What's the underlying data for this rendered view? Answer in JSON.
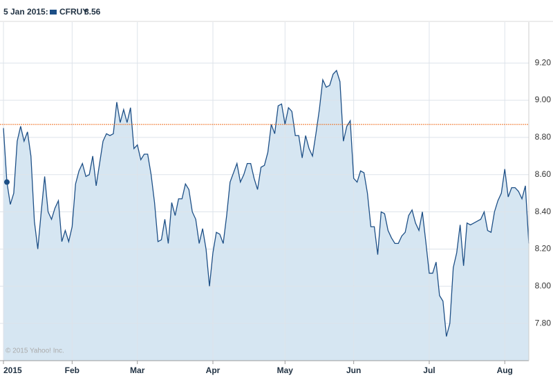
{
  "chart_data": {
    "type": "area",
    "hover_label": "5 Jan 2015:",
    "hover_value": 8.56,
    "watermark": "© 2015 Yahoo! Inc.",
    "reference_line": 8.87,
    "reference_color": "#f07020",
    "grid": true,
    "categories": [
      "2015",
      null,
      null,
      null,
      null,
      null,
      null,
      null,
      null,
      null,
      null,
      null,
      null,
      null,
      null,
      null,
      null,
      null,
      null,
      null,
      "Feb",
      null,
      null,
      null,
      null,
      null,
      null,
      null,
      null,
      null,
      null,
      null,
      null,
      null,
      null,
      null,
      null,
      null,
      null,
      "Mar",
      null,
      null,
      null,
      null,
      null,
      null,
      null,
      null,
      null,
      null,
      null,
      null,
      null,
      null,
      null,
      null,
      null,
      null,
      null,
      null,
      null,
      "Apr",
      null,
      null,
      null,
      null,
      null,
      null,
      null,
      null,
      null,
      null,
      null,
      null,
      null,
      null,
      null,
      null,
      null,
      null,
      null,
      null,
      "May",
      null,
      null,
      null,
      null,
      null,
      null,
      null,
      null,
      null,
      null,
      null,
      null,
      null,
      null,
      null,
      null,
      null,
      null,
      null,
      "Jun",
      null,
      null,
      null,
      null,
      null,
      null,
      null,
      null,
      null,
      null,
      null,
      null,
      null,
      null,
      null,
      null,
      null,
      null,
      null,
      null,
      null,
      "Jul",
      null,
      null,
      null,
      null,
      null,
      null,
      null,
      null,
      null,
      null,
      null,
      null,
      null,
      null,
      null,
      null,
      null,
      null,
      null,
      null,
      null,
      "Aug",
      null,
      null,
      null,
      null,
      null,
      null,
      null
    ],
    "series": [
      {
        "name": "CFRUY",
        "color": "#1d4f86",
        "fill": "#d6e6f2",
        "values": [
          8.85,
          8.56,
          8.44,
          8.5,
          8.78,
          8.86,
          8.78,
          8.83,
          8.7,
          8.35,
          8.2,
          8.4,
          8.59,
          8.4,
          8.36,
          8.42,
          8.46,
          8.24,
          8.3,
          8.24,
          8.32,
          8.55,
          8.62,
          8.66,
          8.59,
          8.6,
          8.7,
          8.54,
          8.66,
          8.78,
          8.82,
          8.81,
          8.82,
          8.99,
          8.88,
          8.95,
          8.88,
          8.96,
          8.74,
          8.76,
          8.68,
          8.71,
          8.71,
          8.6,
          8.45,
          8.24,
          8.25,
          8.36,
          8.23,
          8.45,
          8.38,
          8.47,
          8.47,
          8.55,
          8.52,
          8.4,
          8.36,
          8.23,
          8.31,
          8.2,
          8.0,
          8.18,
          8.29,
          8.28,
          8.23,
          8.38,
          8.56,
          8.61,
          8.66,
          8.56,
          8.6,
          8.66,
          8.66,
          8.58,
          8.52,
          8.64,
          8.65,
          8.72,
          8.87,
          8.82,
          8.97,
          8.98,
          8.87,
          8.96,
          8.94,
          8.81,
          8.81,
          8.69,
          8.81,
          8.74,
          8.7,
          8.82,
          8.95,
          9.11,
          9.07,
          9.08,
          9.14,
          9.16,
          9.1,
          8.78,
          8.86,
          8.89,
          8.58,
          8.56,
          8.62,
          8.61,
          8.5,
          8.32,
          8.32,
          8.17,
          8.4,
          8.39,
          8.3,
          8.26,
          8.23,
          8.23,
          8.27,
          8.29,
          8.38,
          8.41,
          8.34,
          8.3,
          8.4,
          8.24,
          8.07,
          8.07,
          8.13,
          7.95,
          7.92,
          7.73,
          7.8,
          8.1,
          8.18,
          8.33,
          8.11,
          8.34,
          8.33,
          8.34,
          8.35,
          8.36,
          8.4,
          8.3,
          8.29,
          8.4,
          8.46,
          8.5,
          8.63,
          8.48,
          8.53,
          8.53,
          8.51,
          8.47,
          8.54,
          8.23
        ]
      }
    ],
    "ylim": [
      7.6,
      9.42
    ],
    "yticks": [
      {
        "value": 7.8,
        "label": "7.80"
      },
      {
        "value": 8.0,
        "label": "8.00"
      },
      {
        "value": 8.2,
        "label": "8.20"
      },
      {
        "value": 8.4,
        "label": "8.40"
      },
      {
        "value": 8.6,
        "label": "8.60"
      },
      {
        "value": 8.8,
        "label": "8.80"
      },
      {
        "value": 9.0,
        "label": "9.00"
      },
      {
        "value": 9.2,
        "label": "9.20"
      }
    ]
  }
}
